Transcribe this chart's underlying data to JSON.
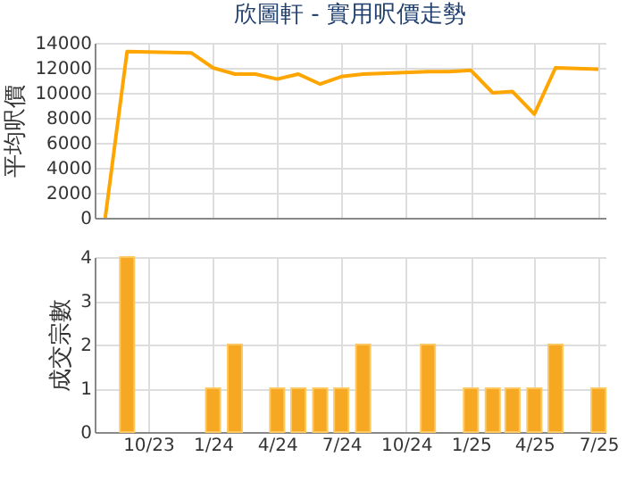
{
  "chart_data": [
    {
      "type": "line",
      "title": "欣圖軒 - 實用呎價走勢",
      "ylabel": "平均呎價",
      "xlim": [
        "2023-07-17",
        "2025-07-11"
      ],
      "ylim": [
        0,
        14000
      ],
      "yticks": [
        0,
        2000,
        4000,
        6000,
        8000,
        10000,
        12000,
        14000
      ],
      "xticks": [
        {
          "value": "2023-10",
          "label": null
        },
        {
          "value": "2024-01",
          "label": null
        },
        {
          "value": "2024-04",
          "label": null
        },
        {
          "value": "2024-07",
          "label": null
        },
        {
          "value": "2024-10",
          "label": null
        },
        {
          "value": "2025-01",
          "label": null
        },
        {
          "value": "2025-04",
          "label": null
        },
        {
          "value": "2025-07",
          "label": null
        }
      ],
      "grid": true,
      "tick_labels": "y",
      "series": [
        {
          "color": "#ffa500",
          "line_style": "solid",
          "x": [
            "2023-08",
            "2023-09",
            "2023-12",
            "2024-01",
            "2024-02",
            "2024-03",
            "2024-04",
            "2024-05",
            "2024-06",
            "2024-07",
            "2024-08",
            "2024-11",
            "2024-12",
            "2025-01",
            "2025-02",
            "2025-03",
            "2025-04",
            "2025-05",
            "2025-07"
          ],
          "values": [
            0,
            13300,
            13200,
            12000,
            11500,
            11500,
            11100,
            11500,
            10700,
            11300,
            11500,
            11700,
            11700,
            11800,
            10000,
            10100,
            8300,
            12000,
            11900
          ]
        }
      ]
    },
    {
      "type": "bar",
      "ylabel": "成交宗數",
      "x": [
        "2023-09",
        "2024-01",
        "2024-02",
        "2024-04",
        "2024-05",
        "2024-06",
        "2024-07",
        "2024-08",
        "2024-11",
        "2025-01",
        "2025-02",
        "2025-03",
        "2025-04",
        "2025-05",
        "2025-07"
      ],
      "values": [
        4,
        1,
        2,
        1,
        1,
        1,
        1,
        2,
        2,
        1,
        1,
        1,
        1,
        2,
        1
      ],
      "color": "#f7a823",
      "xlim": [
        "2023-07-17",
        "2025-07-11"
      ],
      "xticks": [
        {
          "value": "2023-10",
          "label": "10/23"
        },
        {
          "value": "2024-01",
          "label": "1/24"
        },
        {
          "value": "2024-04",
          "label": "4/24"
        },
        {
          "value": "2024-07",
          "label": "7/24"
        },
        {
          "value": "2024-10",
          "label": "10/24"
        },
        {
          "value": "2025-01",
          "label": "1/25"
        },
        {
          "value": "2025-04",
          "label": "4/25"
        },
        {
          "value": "2025-07",
          "label": "7/25"
        }
      ],
      "ylim": [
        0,
        4
      ],
      "yticks": [
        0,
        1,
        2,
        3,
        4
      ],
      "grid": true
    }
  ]
}
